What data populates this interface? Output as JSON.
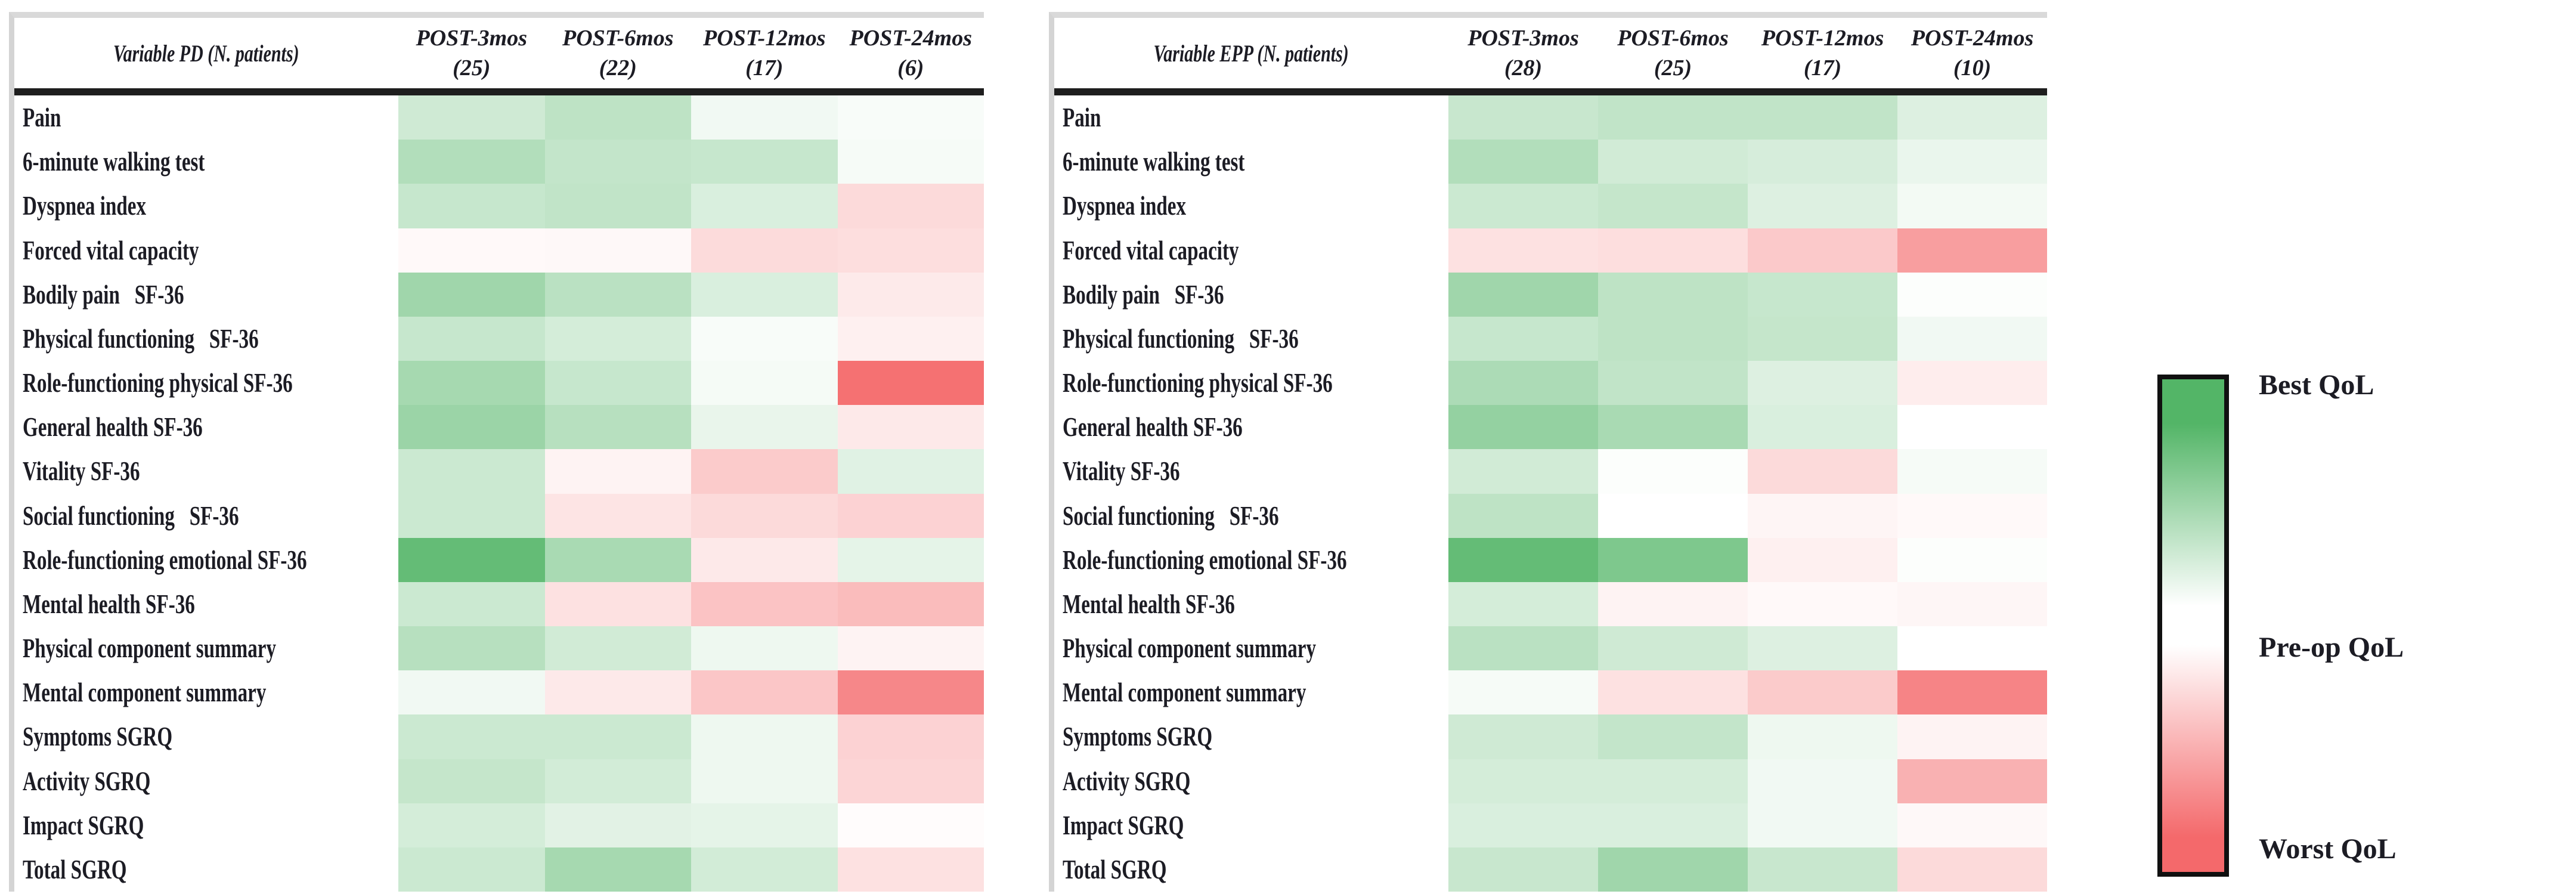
{
  "legend": {
    "best": "Best QoL",
    "mid": "Pre-op QoL",
    "worst": "Worst QoL",
    "best_color": "#53b567",
    "mid_color": "#ffffff",
    "worst_color": "#f4696b"
  },
  "chart_data": [
    {
      "type": "heatmap",
      "title": "Variable PD (N. patients)",
      "columns": [
        {
          "label": "POST-3mos",
          "n": "(25)"
        },
        {
          "label": "POST-6mos",
          "n": "(22)"
        },
        {
          "label": "POST-12mos",
          "n": "(17)"
        },
        {
          "label": "POST-24mos",
          "n": "(6)"
        }
      ],
      "rows": [
        "Pain",
        "6-minute walking test",
        "Dyspnea index",
        "Forced vital capacity",
        "Bodily pain   SF-36",
        "Physical functioning   SF-36",
        "Role-functioning physical SF-36",
        "General health SF-36",
        "Vitality SF-36",
        "Social functioning   SF-36",
        "Role-functioning emotional SF-36",
        "Mental health SF-36",
        "Physical component summary",
        "Mental component summary",
        "Symptoms SGRQ",
        "Activity SGRQ",
        "Impact SGRQ",
        "Total SGRQ"
      ],
      "value_scale": {
        "min": -1,
        "mid": 0,
        "max": 1,
        "min_meaning": "Worst QoL",
        "mid_meaning": "Pre-op QoL",
        "max_meaning": "Best QoL"
      },
      "values": [
        [
          0.28,
          0.38,
          0.08,
          0.04
        ],
        [
          0.45,
          0.35,
          0.33,
          0.05
        ],
        [
          0.33,
          0.36,
          0.22,
          -0.25
        ],
        [
          -0.04,
          -0.05,
          -0.24,
          -0.22
        ],
        [
          0.55,
          0.4,
          0.22,
          -0.14
        ],
        [
          0.33,
          0.25,
          0.04,
          -0.1
        ],
        [
          0.52,
          0.33,
          0.06,
          -0.95
        ],
        [
          0.58,
          0.42,
          0.13,
          -0.15
        ],
        [
          0.3,
          -0.08,
          -0.35,
          0.18
        ],
        [
          0.3,
          -0.18,
          -0.25,
          -0.3
        ],
        [
          0.9,
          0.5,
          -0.15,
          0.15
        ],
        [
          0.3,
          -0.2,
          -0.4,
          -0.45
        ],
        [
          0.42,
          0.27,
          0.1,
          -0.08
        ],
        [
          0.08,
          -0.15,
          -0.38,
          -0.8
        ],
        [
          0.3,
          0.3,
          0.1,
          -0.3
        ],
        [
          0.34,
          0.26,
          0.1,
          -0.28
        ],
        [
          0.25,
          0.17,
          0.15,
          -0.02
        ],
        [
          0.3,
          0.52,
          0.26,
          -0.2
        ]
      ]
    },
    {
      "type": "heatmap",
      "title": "Variable EPP (N. patients)",
      "columns": [
        {
          "label": "POST-3mos",
          "n": "(28)"
        },
        {
          "label": "POST-6mos",
          "n": "(25)"
        },
        {
          "label": "POST-12mos",
          "n": "(17)"
        },
        {
          "label": "POST-24mos",
          "n": "(10)"
        }
      ],
      "rows": [
        "Pain",
        "6-minute walking test",
        "Dyspnea index",
        "Forced vital capacity",
        "Bodily pain   SF-36",
        "Physical functioning   SF-36",
        "Role-functioning physical SF-36",
        "General health SF-36",
        "Vitality SF-36",
        "Social functioning   SF-36",
        "Role-functioning emotional SF-36",
        "Mental health SF-36",
        "Physical component summary",
        "Mental component summary",
        "Symptoms SGRQ",
        "Activity SGRQ",
        "Impact SGRQ",
        "Total SGRQ"
      ],
      "value_scale": {
        "min": -1,
        "mid": 0,
        "max": 1,
        "min_meaning": "Worst QoL",
        "mid_meaning": "Pre-op QoL",
        "max_meaning": "Best QoL"
      },
      "values": [
        [
          0.32,
          0.36,
          0.36,
          0.2
        ],
        [
          0.45,
          0.27,
          0.24,
          0.12
        ],
        [
          0.3,
          0.34,
          0.2,
          0.07
        ],
        [
          -0.2,
          -0.22,
          -0.36,
          -0.65
        ],
        [
          0.55,
          0.38,
          0.33,
          0.02
        ],
        [
          0.33,
          0.38,
          0.34,
          0.08
        ],
        [
          0.48,
          0.36,
          0.2,
          -0.12
        ],
        [
          0.62,
          0.5,
          0.22,
          0.0
        ],
        [
          0.27,
          0.02,
          -0.25,
          0.05
        ],
        [
          0.38,
          0.0,
          -0.07,
          -0.04
        ],
        [
          0.9,
          0.75,
          -0.1,
          0.02
        ],
        [
          0.25,
          -0.08,
          -0.04,
          -0.06
        ],
        [
          0.4,
          0.28,
          0.2,
          0.0
        ],
        [
          0.05,
          -0.2,
          -0.35,
          -0.82
        ],
        [
          0.28,
          0.35,
          0.1,
          -0.08
        ],
        [
          0.25,
          0.25,
          0.08,
          -0.52
        ],
        [
          0.22,
          0.22,
          0.08,
          -0.05
        ],
        [
          0.32,
          0.55,
          0.32,
          -0.25
        ]
      ]
    }
  ]
}
